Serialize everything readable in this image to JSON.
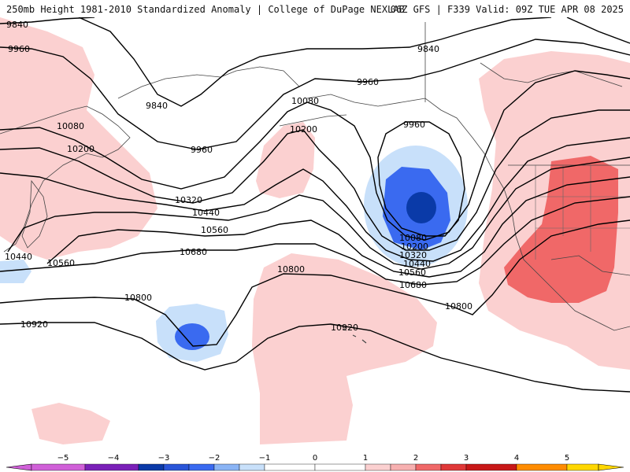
{
  "header": {
    "title_left": "250mb Height 1981-2010 Standardized Anomaly | College of DuPage NEXLAB",
    "title_right": "06Z GFS | F339 Valid: 09Z TUE APR 08 2025"
  },
  "contour_labels": [
    "9840",
    "9960",
    "9840",
    "9960",
    "9840",
    "10080",
    "10200",
    "9960",
    "10080",
    "10200",
    "10320",
    "10440",
    "10560",
    "10680",
    "10800",
    "10920",
    "10080",
    "10200",
    "10320",
    "10440",
    "10560",
    "10680",
    "10800",
    "10920",
    "10440",
    "10560",
    "9960",
    "10800"
  ],
  "anomaly_colors": {
    "neg5": "#d060d8",
    "neg4": "#7a20b8",
    "neg3": "#0a3aa8",
    "neg2": "#3a6af0",
    "neg1": "#c8e0fa",
    "pos1": "#fbd0d0",
    "pos2": "#f06868",
    "pos3": "#c81818",
    "pos4": "#ff8c00",
    "pos5": "#ffd700"
  },
  "colorbar": {
    "ticks": [
      "−5",
      "−4",
      "−3",
      "−2",
      "−1",
      "0",
      "1",
      "2",
      "3",
      "4",
      "5"
    ]
  }
}
